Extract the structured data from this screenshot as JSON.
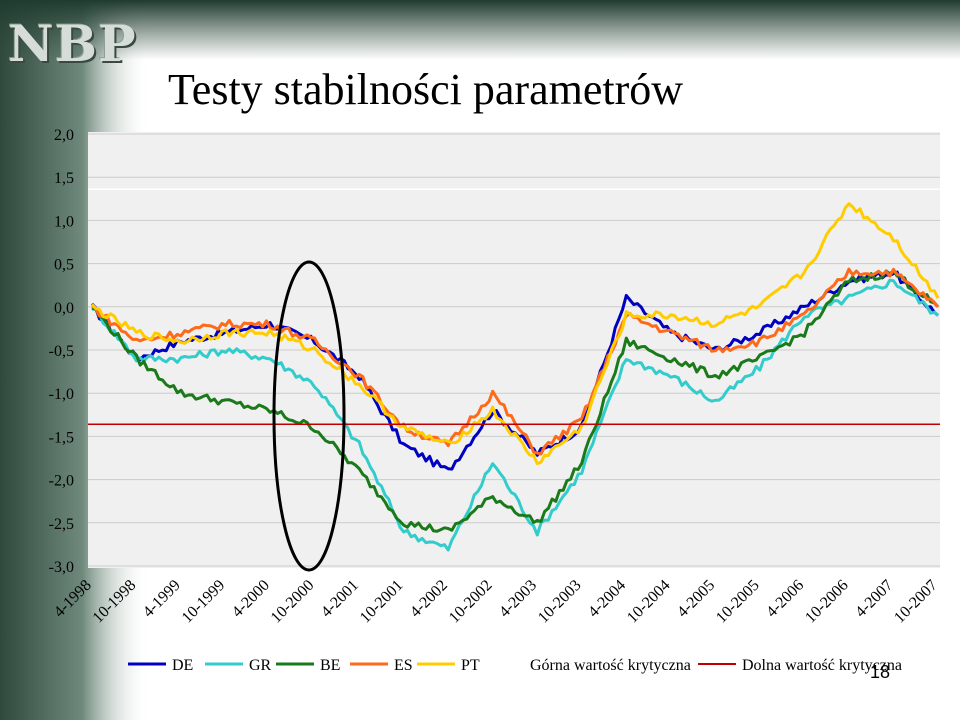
{
  "logo_text": "NBP",
  "title": "Testy stabilności parametrów",
  "page_number": "18",
  "colors": {
    "DE": "#0000c0",
    "GR": "#33cccc",
    "BE": "#1a7a1a",
    "ES": "#ff6a1a",
    "PT": "#ffcc00",
    "upper": "#ffffff",
    "lower": "#c00000",
    "ellipse": "#000000"
  },
  "chart_data": {
    "type": "line",
    "title": "",
    "xlabel": "",
    "ylabel": "",
    "ylim": [
      -3.0,
      2.0
    ],
    "yticks": [
      "2,0",
      "1,5",
      "1,0",
      "0,5",
      "0,0",
      "-0,5",
      "-1,0",
      "-1,5",
      "-2,0",
      "-2,5",
      "-3,0"
    ],
    "categories": [
      "4-1998",
      "10-1998",
      "4-1999",
      "10-1999",
      "4-2000",
      "10-2000",
      "4-2001",
      "10-2001",
      "4-2002",
      "10-2002",
      "4-2003",
      "10-2003",
      "4-2004",
      "10-2004",
      "4-2005",
      "10-2005",
      "4-2006",
      "10-2006",
      "4-2007",
      "10-2007"
    ],
    "grid": true,
    "legend_position": "bottom",
    "series": [
      {
        "name": "DE",
        "values": [
          0.0,
          -0.6,
          -0.4,
          -0.3,
          -0.2,
          -0.4,
          -0.8,
          -1.6,
          -1.9,
          -1.2,
          -1.7,
          -1.4,
          0.1,
          -0.3,
          -0.5,
          -0.3,
          0.0,
          0.3,
          0.4,
          -0.1
        ]
      },
      {
        "name": "GR",
        "values": [
          0.0,
          -0.6,
          -0.6,
          -0.5,
          -0.6,
          -0.9,
          -1.6,
          -2.6,
          -2.8,
          -1.8,
          -2.6,
          -1.9,
          -0.6,
          -0.8,
          -1.1,
          -0.7,
          -0.1,
          0.1,
          0.3,
          -0.1
        ]
      },
      {
        "name": "BE",
        "values": [
          0.0,
          -0.6,
          -1.0,
          -1.1,
          -1.2,
          -1.4,
          -1.9,
          -2.5,
          -2.6,
          -2.2,
          -2.5,
          -1.8,
          -0.4,
          -0.6,
          -0.8,
          -0.6,
          -0.3,
          0.3,
          0.4,
          0.0
        ]
      },
      {
        "name": "ES",
        "values": [
          0.0,
          -0.4,
          -0.3,
          -0.2,
          -0.2,
          -0.4,
          -0.8,
          -1.4,
          -1.6,
          -1.0,
          -1.7,
          -1.3,
          -0.1,
          -0.3,
          -0.5,
          -0.4,
          -0.1,
          0.4,
          0.4,
          0.0
        ]
      },
      {
        "name": "PT",
        "values": [
          0.0,
          -0.3,
          -0.4,
          -0.3,
          -0.3,
          -0.5,
          -0.9,
          -1.4,
          -1.6,
          -1.2,
          -1.8,
          -1.4,
          -0.1,
          -0.1,
          -0.2,
          0.0,
          0.4,
          1.2,
          0.8,
          0.1
        ]
      },
      {
        "name": "Górna wartość krytyczna",
        "values": [
          1.36,
          1.36,
          1.36,
          1.36,
          1.36,
          1.36,
          1.36,
          1.36,
          1.36,
          1.36,
          1.36,
          1.36,
          1.36,
          1.36,
          1.36,
          1.36,
          1.36,
          1.36,
          1.36,
          1.36
        ]
      },
      {
        "name": "Dolna wartość krytyczna",
        "values": [
          -1.36,
          -1.36,
          -1.36,
          -1.36,
          -1.36,
          -1.36,
          -1.36,
          -1.36,
          -1.36,
          -1.36,
          -1.36,
          -1.36,
          -1.36,
          -1.36,
          -1.36,
          -1.36,
          -1.36,
          -1.36,
          -1.36,
          -1.36
        ]
      }
    ]
  }
}
